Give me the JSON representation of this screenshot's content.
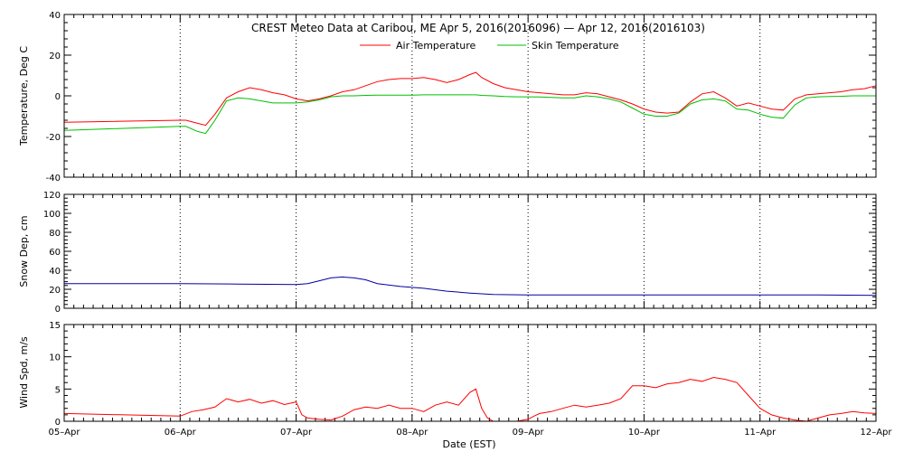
{
  "title": "CREST Meteo Data at Caribou, ME   Apr  5, 2016(2016096) — Apr 12, 2016(2016103)",
  "xlabel": "Date (EST)",
  "colors": {
    "axes": "#000000",
    "air": "#ff0000",
    "skin": "#00c000",
    "snow": "#0000a0",
    "wind": "#ff0000"
  },
  "chart_data": [
    {
      "type": "line",
      "ylabel": "Temperature, Deg C",
      "ylim": [
        -40,
        40
      ],
      "yticks": [
        -40,
        -20,
        0,
        20,
        40
      ],
      "grid": "vertical dotted at day boundaries",
      "legend": "top-center",
      "x_unit": "days since Apr 5 00:00 EST",
      "series": [
        {
          "name": "Air Temperature",
          "x": [
            0,
            1,
            1.05,
            1.15,
            1.22,
            1.3,
            1.4,
            1.5,
            1.6,
            1.7,
            1.8,
            1.9,
            2.0,
            2.1,
            2.2,
            2.3,
            2.4,
            2.5,
            2.6,
            2.7,
            2.8,
            2.9,
            3.0,
            3.1,
            3.2,
            3.3,
            3.4,
            3.5,
            3.55,
            3.6,
            3.7,
            3.8,
            3.9,
            4.0,
            4.1,
            4.2,
            4.3,
            4.4,
            4.5,
            4.6,
            4.7,
            4.8,
            4.9,
            5.0,
            5.1,
            5.2,
            5.3,
            5.4,
            5.5,
            5.6,
            5.7,
            5.8,
            5.9,
            6.0,
            6.1,
            6.2,
            6.3,
            6.4,
            6.5,
            6.6,
            6.7,
            6.8,
            6.9,
            7.0
          ],
          "values": [
            -13,
            -12,
            -12,
            -13.5,
            -14.5,
            -9,
            -1,
            2,
            4,
            3,
            1.5,
            0.5,
            -1.5,
            -2.5,
            -1.5,
            0,
            2,
            3,
            5,
            7,
            8,
            8.5,
            8.5,
            9,
            8,
            6.5,
            8,
            10.5,
            11.5,
            9,
            6,
            4,
            3,
            2,
            1.5,
            1,
            0.5,
            0.5,
            1.5,
            1,
            -0.5,
            -2,
            -4,
            -6.5,
            -8,
            -8.5,
            -8,
            -3,
            1,
            2,
            -1,
            -5,
            -3.5,
            -5,
            -6.5,
            -7,
            -1.5,
            0.5,
            1,
            1.5,
            2,
            3,
            3.5,
            5
          ]
        },
        {
          "name": "Skin Temperature",
          "x": [
            0,
            1,
            1.05,
            1.15,
            1.22,
            1.3,
            1.4,
            1.5,
            1.6,
            1.7,
            1.8,
            1.9,
            2.0,
            2.1,
            2.2,
            2.3,
            2.4,
            2.5,
            2.6,
            2.7,
            2.8,
            2.9,
            3.0,
            3.1,
            3.2,
            3.3,
            3.4,
            3.5,
            3.55,
            3.6,
            3.7,
            3.8,
            3.9,
            4.0,
            4.1,
            4.2,
            4.3,
            4.4,
            4.5,
            4.6,
            4.7,
            4.8,
            4.9,
            5.0,
            5.1,
            5.2,
            5.3,
            5.4,
            5.5,
            5.6,
            5.7,
            5.8,
            5.9,
            6.0,
            6.1,
            6.2,
            6.3,
            6.4,
            6.5,
            6.6,
            6.7,
            6.8,
            6.9,
            7.0
          ],
          "values": [
            -17,
            -15,
            -15,
            -17.5,
            -18.5,
            -12,
            -2.5,
            -1,
            -1.5,
            -2.5,
            -3.5,
            -3.5,
            -3.5,
            -3,
            -2,
            -0.5,
            0,
            0,
            0.2,
            0.3,
            0.3,
            0.3,
            0.3,
            0.5,
            0.5,
            0.5,
            0.5,
            0.5,
            0.5,
            0.2,
            0,
            -0.3,
            -0.5,
            -0.5,
            -0.6,
            -0.8,
            -1,
            -1,
            0,
            -0.5,
            -1.5,
            -3,
            -6,
            -9,
            -10,
            -10,
            -8.5,
            -4,
            -2,
            -1.5,
            -2.5,
            -6.5,
            -7,
            -9,
            -10.5,
            -11,
            -4.5,
            -1,
            -0.5,
            -0.3,
            -0.2,
            0,
            0,
            0
          ]
        }
      ]
    },
    {
      "type": "line",
      "ylabel": "Snow Dep, cm",
      "ylim": [
        0,
        120
      ],
      "yticks": [
        0,
        20,
        40,
        60,
        80,
        100,
        120
      ],
      "series": [
        {
          "name": "",
          "x": [
            0,
            1,
            1.5,
            2.0,
            2.1,
            2.2,
            2.3,
            2.4,
            2.5,
            2.6,
            2.7,
            2.9,
            3.1,
            3.3,
            3.5,
            3.7,
            4.0,
            4.5,
            5.0,
            5.5,
            6.0,
            6.5,
            7.0
          ],
          "values": [
            26,
            26,
            25.5,
            25,
            26,
            29,
            32,
            33,
            32,
            30,
            26,
            23,
            21,
            18,
            16,
            14.5,
            14,
            14,
            14,
            14,
            14,
            14,
            13.5
          ]
        }
      ]
    },
    {
      "type": "line",
      "ylabel": "Wind Spd, m/s",
      "ylim": [
        0,
        15
      ],
      "yticks": [
        0,
        5,
        10,
        15
      ],
      "series": [
        {
          "name": "",
          "x": [
            0,
            1,
            1.1,
            1.2,
            1.3,
            1.4,
            1.5,
            1.6,
            1.7,
            1.8,
            1.9,
            2.0,
            2.05,
            2.1,
            2.2,
            2.3,
            2.4,
            2.5,
            2.6,
            2.7,
            2.8,
            2.9,
            3.0,
            3.1,
            3.2,
            3.3,
            3.4,
            3.5,
            3.55,
            3.6,
            3.65,
            3.7,
            3.8,
            3.9,
            4.0,
            4.05,
            4.1,
            4.2,
            4.3,
            4.4,
            4.5,
            4.6,
            4.7,
            4.8,
            4.9,
            5.0,
            5.1,
            5.2,
            5.3,
            5.4,
            5.5,
            5.6,
            5.7,
            5.8,
            5.9,
            6.0,
            6.1,
            6.2,
            6.3,
            6.4,
            6.5,
            6.6,
            6.7,
            6.8,
            6.9,
            7.0
          ],
          "values": [
            1.2,
            0.8,
            1.5,
            1.8,
            2.2,
            3.5,
            3.0,
            3.4,
            2.8,
            3.2,
            2.6,
            3.0,
            1.0,
            0.5,
            0.3,
            0.2,
            0.8,
            1.8,
            2.2,
            2.0,
            2.5,
            2.0,
            2.0,
            1.5,
            2.5,
            3.0,
            2.5,
            4.5,
            5.0,
            2.0,
            0.5,
            0.0,
            0.0,
            0.0,
            0.3,
            0.8,
            1.2,
            1.5,
            2.0,
            2.5,
            2.2,
            2.5,
            2.8,
            3.5,
            5.5,
            5.5,
            5.2,
            5.8,
            6.0,
            6.5,
            6.2,
            6.8,
            6.5,
            6.0,
            4.0,
            2.0,
            1.0,
            0.5,
            0.2,
            0.0,
            0.5,
            1.0,
            1.2,
            1.5,
            1.3,
            1.2
          ]
        }
      ]
    }
  ],
  "xtick_labels": [
    "05–Apr",
    "06–Apr",
    "07–Apr",
    "08–Apr",
    "09–Apr",
    "10–Apr",
    "11–Apr",
    "12–Apr"
  ]
}
